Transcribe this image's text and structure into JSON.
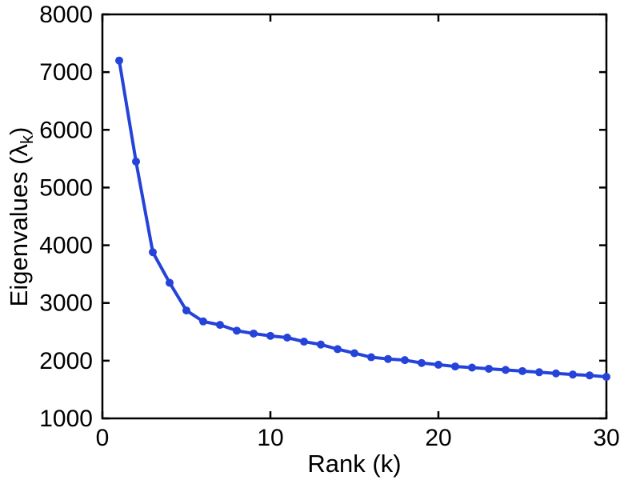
{
  "figure": {
    "background": "#ffffff"
  },
  "chart_data": {
    "type": "line",
    "title": "",
    "xlabel": "Rank (k)",
    "ylabel_pre": "Eigenvalues (λ",
    "ylabel_sub": "k",
    "ylabel_post": ")",
    "x": [
      1,
      2,
      3,
      4,
      5,
      6,
      7,
      8,
      9,
      10,
      11,
      12,
      13,
      14,
      15,
      16,
      17,
      18,
      19,
      20,
      21,
      22,
      23,
      24,
      25,
      26,
      27,
      28,
      29,
      30
    ],
    "y": [
      7200,
      5450,
      3880,
      3350,
      2870,
      2680,
      2620,
      2520,
      2470,
      2430,
      2400,
      2330,
      2280,
      2200,
      2130,
      2060,
      2030,
      2010,
      1960,
      1930,
      1900,
      1880,
      1860,
      1840,
      1820,
      1800,
      1780,
      1760,
      1745,
      1720
    ],
    "xlim": [
      0,
      30
    ],
    "ylim": [
      1000,
      8000
    ],
    "xticks": [
      0,
      10,
      20,
      30
    ],
    "yticks": [
      1000,
      2000,
      3000,
      4000,
      5000,
      6000,
      7000,
      8000
    ],
    "grid": false,
    "legend_position": "none",
    "line_color": "#2543d9",
    "marker": "circle",
    "marker_size": 5,
    "axis_color": "#000000"
  }
}
